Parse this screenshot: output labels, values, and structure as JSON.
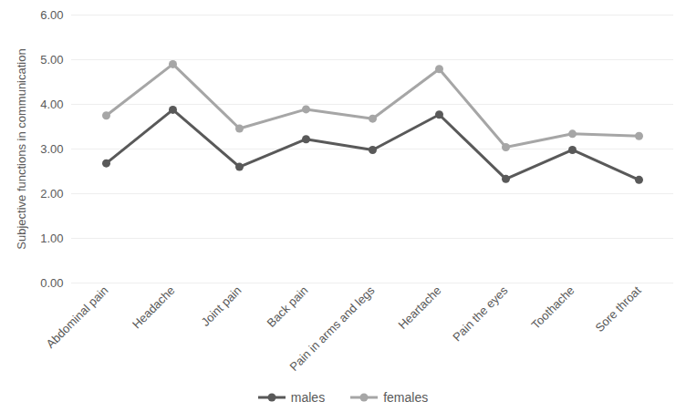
{
  "chart_data": {
    "type": "line",
    "y_label": "Subjective functions in communication",
    "categories": [
      "Abdominal pain",
      "Headache",
      "Joint pain",
      "Back pain",
      "Pain in arms and legs",
      "Heartache",
      "Pain the eyes",
      "Toothache",
      "Sore throat"
    ],
    "series": [
      {
        "name": "males",
        "color": "#595959",
        "marker": "circle",
        "line_style": "solid",
        "values": [
          2.68,
          3.88,
          2.6,
          3.22,
          2.98,
          3.77,
          2.33,
          2.98,
          2.31
        ]
      },
      {
        "name": "females",
        "color": "#a6a6a6",
        "marker": "circle",
        "line_style": "solid",
        "values": [
          3.75,
          4.9,
          3.46,
          3.89,
          3.68,
          4.79,
          3.04,
          3.34,
          3.29
        ]
      }
    ],
    "ylim": [
      0,
      6
    ],
    "yticks": [
      {
        "value": 0,
        "label": "0.00"
      },
      {
        "value": 1,
        "label": "1.00"
      },
      {
        "value": 2,
        "label": "2.00"
      },
      {
        "value": 3,
        "label": "3.00"
      },
      {
        "value": 4,
        "label": "4.00"
      },
      {
        "value": 5,
        "label": "5.00"
      },
      {
        "value": 6,
        "label": "6.00"
      }
    ],
    "grid": true,
    "legend": "bottom"
  }
}
